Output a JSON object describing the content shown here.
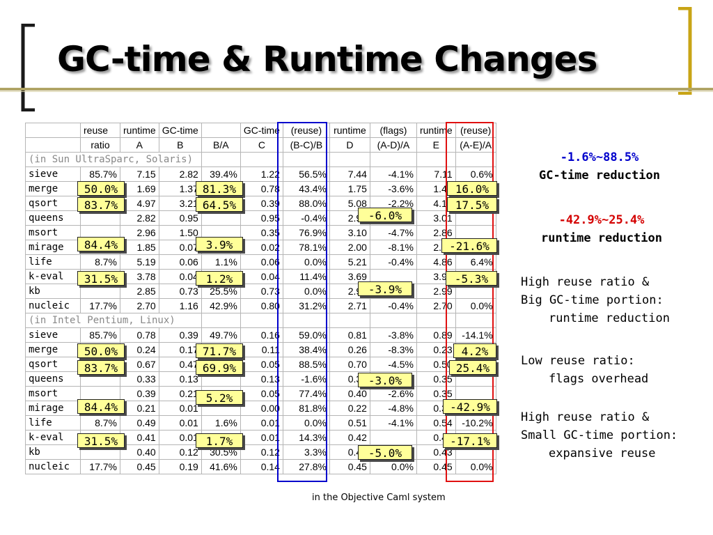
{
  "title": "GC-time & Runtime Changes",
  "header_row1": [
    "",
    "reuse",
    "runtime",
    "GC-time",
    "",
    "GC-time",
    "(reuse)",
    "runtime",
    "(flags)",
    "runtime",
    "(reuse)"
  ],
  "header_row2": [
    "",
    "ratio",
    "A",
    "B",
    "B/A",
    "C",
    "(B-C)/B",
    "D",
    "(A-D)/A",
    "E",
    "(A-E)/A"
  ],
  "section_sparc": "(in Sun UltraSparc, Solaris)",
  "section_intel": "(in Intel Pentium, Linux)",
  "rows_sparc": [
    [
      "sieve",
      "85.7%",
      "7.15",
      "2.82",
      "39.4%",
      "1.22",
      "56.5%",
      "7.44",
      "-4.1%",
      "7.11",
      "0.6%"
    ],
    [
      "merge",
      "",
      "1.69",
      "1.37",
      "",
      "0.78",
      "43.4%",
      "1.75",
      "-3.6%",
      "1.42",
      ""
    ],
    [
      "qsort",
      "",
      "4.97",
      "3.21",
      "",
      "0.39",
      "88.0%",
      "5.08",
      "-2.2%",
      "4.10",
      ""
    ],
    [
      "queens",
      "",
      "2.82",
      "0.95",
      "",
      "0.95",
      "-0.4%",
      "2.99",
      "",
      "3.01",
      ""
    ],
    [
      "msort",
      "",
      "2.96",
      "1.50",
      "",
      "0.35",
      "76.9%",
      "3.10",
      "-4.7%",
      "2.86",
      ""
    ],
    [
      "mirage",
      "",
      "1.85",
      "0.07",
      "",
      "0.02",
      "78.1%",
      "2.00",
      "-8.1%",
      "2.25",
      ""
    ],
    [
      "life",
      "8.7%",
      "5.19",
      "0.06",
      "1.1%",
      "0.06",
      "0.0%",
      "5.21",
      "-0.4%",
      "4.86",
      "6.4%"
    ],
    [
      "k-eval",
      "",
      "3.78",
      "0.04",
      "",
      "0.04",
      "11.4%",
      "3.69",
      "",
      "3.97",
      ""
    ],
    [
      "kb",
      "",
      "2.85",
      "0.73",
      "25.5%",
      "0.73",
      "0.0%",
      "2.96",
      "",
      "2.99",
      ""
    ],
    [
      "nucleic",
      "17.7%",
      "2.70",
      "1.16",
      "42.9%",
      "0.80",
      "31.2%",
      "2.71",
      "-0.4%",
      "2.70",
      "0.0%"
    ]
  ],
  "rows_intel": [
    [
      "sieve",
      "85.7%",
      "0.78",
      "0.39",
      "49.7%",
      "0.16",
      "59.0%",
      "0.81",
      "-3.8%",
      "0.89",
      "-14.1%"
    ],
    [
      "merge",
      "",
      "0.24",
      "0.17",
      "",
      "0.11",
      "38.4%",
      "0.26",
      "-8.3%",
      "0.23",
      ""
    ],
    [
      "qsort",
      "",
      "0.67",
      "0.47",
      "",
      "0.05",
      "88.5%",
      "0.70",
      "-4.5%",
      "0.50",
      ""
    ],
    [
      "queens",
      "",
      "0.33",
      "0.13",
      "",
      "0.13",
      "-1.6%",
      "0.34",
      "",
      "0.35",
      ""
    ],
    [
      "msort",
      "",
      "0.39",
      "0.21",
      "",
      "0.05",
      "77.4%",
      "0.40",
      "-2.6%",
      "0.35",
      ""
    ],
    [
      "mirage",
      "",
      "0.21",
      "0.01",
      "",
      "0.00",
      "81.8%",
      "0.22",
      "-4.8%",
      "0.30",
      ""
    ],
    [
      "life",
      "8.7%",
      "0.49",
      "0.01",
      "1.6%",
      "0.01",
      "0.0%",
      "0.51",
      "-4.1%",
      "0.54",
      "-10.2%"
    ],
    [
      "k-eval",
      "",
      "0.41",
      "0.01",
      "",
      "0.01",
      "14.3%",
      "0.42",
      "",
      "0.48",
      ""
    ],
    [
      "kb",
      "",
      "0.40",
      "0.12",
      "30.5%",
      "0.12",
      "3.3%",
      "0.42",
      "",
      "0.43",
      ""
    ],
    [
      "nucleic",
      "17.7%",
      "0.45",
      "0.19",
      "41.6%",
      "0.14",
      "27.8%",
      "0.45",
      "0.0%",
      "0.45",
      "0.0%"
    ]
  ],
  "callouts": [
    "50.0%",
    "83.7%",
    "84.4%",
    "31.5%",
    "81.3%",
    "64.5%",
    "3.9%",
    "1.2%",
    "-6.0%",
    "-3.9%",
    "16.0%",
    "17.5%",
    "-21.6%",
    "-5.3%",
    "50.0%",
    "83.7%",
    "84.4%",
    "31.5%",
    "71.7%",
    "69.9%",
    "5.2%",
    "1.7%",
    "-3.0%",
    "-5.0%",
    "4.2%",
    "25.4%",
    "-42.9%",
    "-17.1%"
  ],
  "caption": "in the Objective Caml system",
  "annotations": {
    "gc_range": "-1.6%~88.5%",
    "gc_label": "GC-time reduction",
    "rt_range": "-42.9%~25.4%",
    "rt_label": "runtime reduction",
    "n1_line1": "High reuse ratio &",
    "n1_line2": "Big GC-time portion:",
    "n1_line3": "runtime reduction",
    "n2_line1": "Low reuse ratio:",
    "n2_line2": "flags overhead",
    "n3_line1": "High reuse ratio &",
    "n3_line2": "Small GC-time portion:",
    "n3_line3": "expansive reuse"
  },
  "colors": {
    "bracket_gold": "#c8a415",
    "bracket_dark": "#1a1a1a",
    "reuse_box": "#0000cc",
    "runtime_box": "#e01010",
    "callout_fill": "#ffff99",
    "range_blue": "#0000cc",
    "range_red": "#d40000"
  }
}
